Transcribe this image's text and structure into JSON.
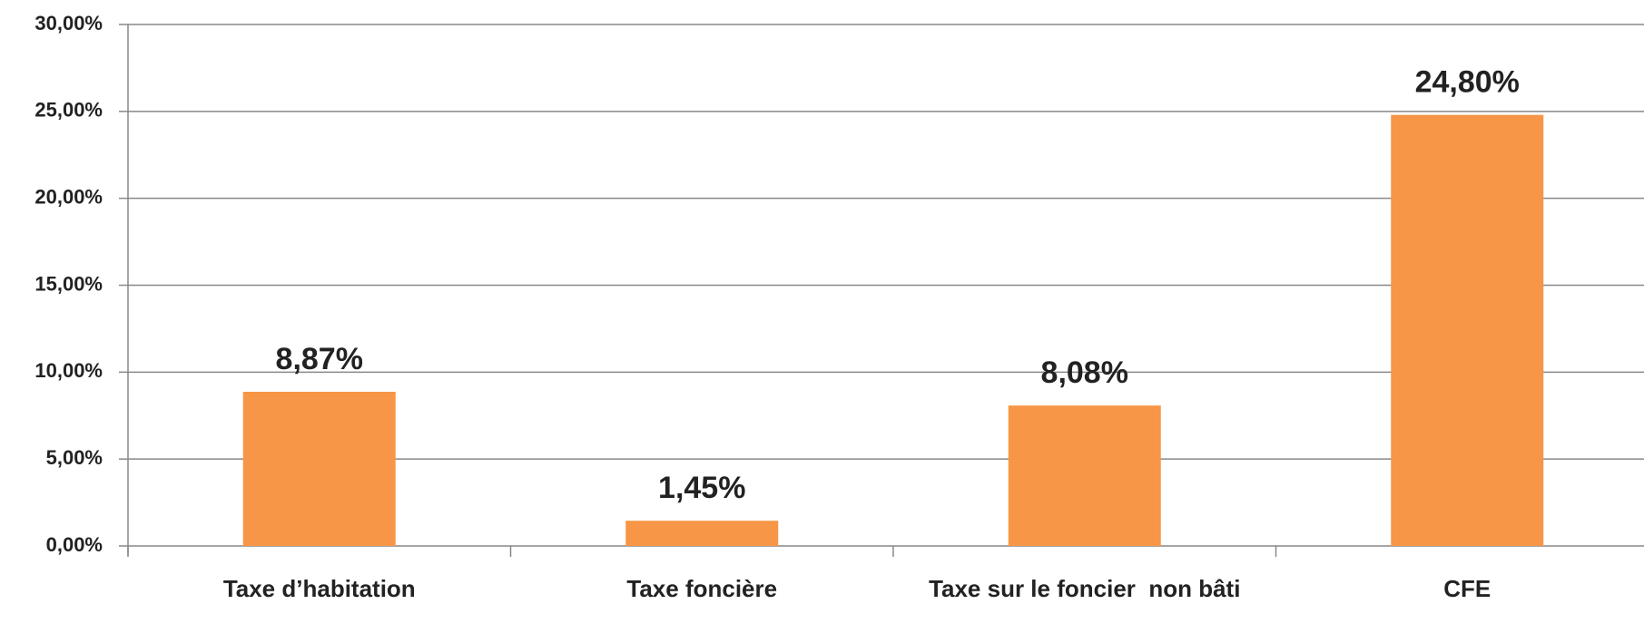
{
  "chart_data": {
    "type": "bar",
    "categories": [
      "Taxe d’habitation",
      "Taxe foncière",
      "Taxe sur le foncier  non bâti",
      "CFE"
    ],
    "values": [
      8.87,
      1.45,
      8.08,
      24.8
    ],
    "value_labels": [
      "8,87%",
      "1,45%",
      "8,08%",
      "24,80%"
    ],
    "color": "#f79646",
    "ylim": [
      0,
      30
    ],
    "yticks": [
      {
        "value": 0,
        "label": "0,00%"
      },
      {
        "value": 5,
        "label": "5,00%"
      },
      {
        "value": 10,
        "label": "10,00%"
      },
      {
        "value": 15,
        "label": "15,00%"
      },
      {
        "value": 20,
        "label": "20,00%"
      },
      {
        "value": 25,
        "label": "25,00%"
      },
      {
        "value": 30,
        "label": "30,00%"
      }
    ],
    "grid": true
  }
}
